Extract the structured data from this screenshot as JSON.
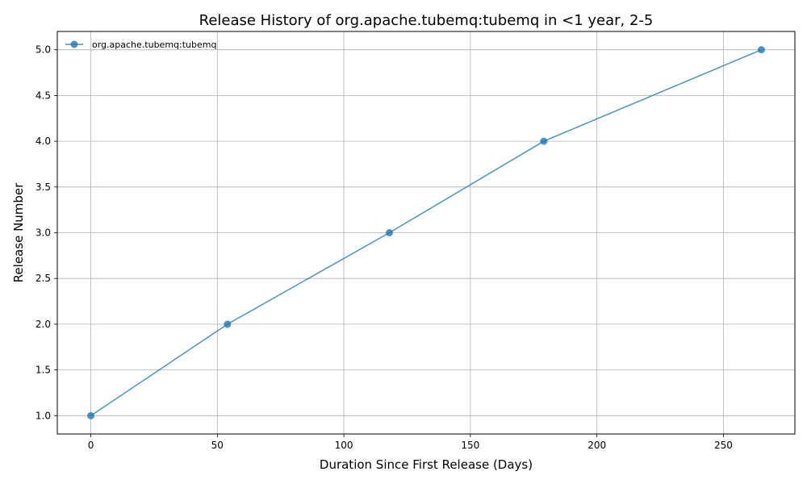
{
  "chart_data": {
    "type": "line",
    "title": "Release History of org.apache.tubemq:tubemq in <1 year, 2-5",
    "xlabel": "Duration Since First Release (Days)",
    "ylabel": "Release Number",
    "xlim": [
      -13.25,
      278.25
    ],
    "ylim": [
      0.8,
      5.2
    ],
    "xticks": [
      0,
      50,
      100,
      150,
      200,
      250
    ],
    "yticks": [
      1.0,
      1.5,
      2.0,
      2.5,
      3.0,
      3.5,
      4.0,
      4.5,
      5.0
    ],
    "xtick_labels": [
      "0",
      "50",
      "100",
      "150",
      "200",
      "250"
    ],
    "ytick_labels": [
      "1.0",
      "1.5",
      "2.0",
      "2.5",
      "3.0",
      "3.5",
      "4.0",
      "4.5",
      "5.0"
    ],
    "grid": true,
    "legend_position": "top-left",
    "series": [
      {
        "name": "org.apache.tubemq:tubemq",
        "color": "#1f77b4",
        "x": [
          0,
          54,
          118,
          179,
          265
        ],
        "y": [
          1,
          2,
          3,
          4,
          5
        ]
      }
    ]
  }
}
